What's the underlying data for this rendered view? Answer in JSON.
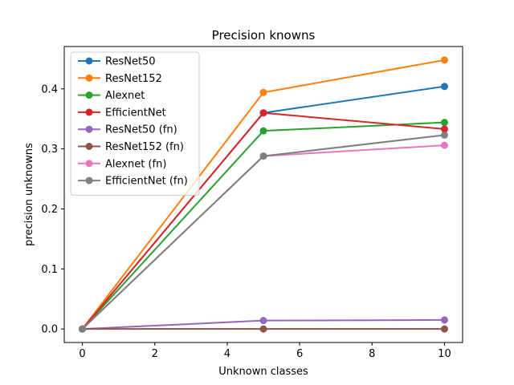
{
  "chart_data": {
    "type": "line",
    "title": "Precision knowns",
    "xlabel": "Unknown classes",
    "ylabel": "precision unknowns",
    "xlim": [
      -0.5,
      10.5
    ],
    "ylim": [
      -0.0225,
      0.4705
    ],
    "x_ticks": [
      0,
      2,
      4,
      6,
      8,
      10
    ],
    "y_ticks": [
      0.0,
      0.1,
      0.2,
      0.3,
      0.4
    ],
    "x_tick_labels": [
      "0",
      "2",
      "4",
      "6",
      "8",
      "10"
    ],
    "y_tick_labels": [
      "0.0",
      "0.1",
      "0.2",
      "0.3",
      "0.4"
    ],
    "grid": false,
    "legend_position": "upper-left",
    "x": [
      0,
      5,
      10
    ],
    "series": [
      {
        "name": "ResNet50",
        "color": "#1f77b4",
        "values": [
          0.0,
          0.36,
          0.404
        ]
      },
      {
        "name": "ResNet152",
        "color": "#ff7f0e",
        "values": [
          0.0,
          0.394,
          0.448
        ]
      },
      {
        "name": "Alexnet",
        "color": "#2ca02c",
        "values": [
          0.0,
          0.33,
          0.344
        ]
      },
      {
        "name": "EfficientNet",
        "color": "#d62728",
        "values": [
          0.0,
          0.36,
          0.333
        ]
      },
      {
        "name": "ResNet50 (fn)",
        "color": "#9467bd",
        "values": [
          0.0,
          0.014,
          0.015
        ]
      },
      {
        "name": "ResNet152 (fn)",
        "color": "#8c564b",
        "values": [
          0.0,
          0.0,
          0.0
        ]
      },
      {
        "name": "Alexnet (fn)",
        "color": "#e377c2",
        "values": [
          0.0,
          0.288,
          0.306
        ]
      },
      {
        "name": "EfficientNet (fn)",
        "color": "#7f7f7f",
        "values": [
          0.0,
          0.288,
          0.323
        ]
      }
    ]
  }
}
